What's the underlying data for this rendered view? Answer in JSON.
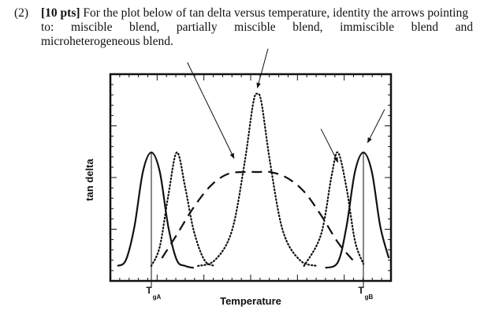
{
  "question": {
    "number": "(2)",
    "points": "[10 pts]",
    "text_line1": "For the plot below of tan delta versus temperature, identity the arrows pointing",
    "text_line2": "to:  miscible  blend,  partially  miscible  blend,  immiscible  blend  and",
    "text_line3": "microheterogeneous blend."
  },
  "chart_data": {
    "type": "line",
    "title": "",
    "xlabel": "Temperature",
    "ylabel": "tan delta",
    "x_ticks": [
      {
        "label": "T",
        "sub": "gA",
        "x": 0.0
      },
      {
        "label": "T",
        "sub": "gB",
        "x": 1.0
      }
    ],
    "xlim": [
      -0.16,
      1.12
    ],
    "ylim": [
      0,
      1
    ],
    "grid": false,
    "legend": "none",
    "series": [
      {
        "style": "solid",
        "x": [
          -0.16,
          -0.12,
          -0.08,
          -0.04,
          0.0,
          0.04,
          0.08,
          0.12,
          0.16,
          0.2
        ],
        "y": [
          0.02,
          0.05,
          0.22,
          0.5,
          0.6,
          0.5,
          0.22,
          0.05,
          0.02,
          0.01
        ]
      },
      {
        "style": "dotted",
        "x": [
          0.0,
          0.04,
          0.08,
          0.12,
          0.16,
          0.2,
          0.25,
          0.3
        ],
        "y": [
          0.02,
          0.12,
          0.38,
          0.6,
          0.42,
          0.2,
          0.05,
          0.02
        ]
      },
      {
        "style": "dashed",
        "x": [
          0.05,
          0.12,
          0.2,
          0.28,
          0.36,
          0.44,
          0.5,
          0.56,
          0.64,
          0.72,
          0.8,
          0.88,
          0.95
        ],
        "y": [
          0.06,
          0.18,
          0.32,
          0.43,
          0.49,
          0.5,
          0.5,
          0.5,
          0.47,
          0.4,
          0.28,
          0.14,
          0.05
        ]
      },
      {
        "style": "dotted",
        "x": [
          0.22,
          0.3,
          0.38,
          0.44,
          0.48,
          0.5,
          0.52,
          0.56,
          0.62,
          0.7,
          0.78
        ],
        "y": [
          0.02,
          0.05,
          0.2,
          0.55,
          0.85,
          0.9,
          0.85,
          0.55,
          0.2,
          0.05,
          0.02
        ]
      },
      {
        "style": "dotted",
        "x": [
          0.72,
          0.8,
          0.85,
          0.88,
          0.92,
          0.96,
          1.0
        ],
        "y": [
          0.02,
          0.18,
          0.48,
          0.6,
          0.42,
          0.15,
          0.03
        ]
      },
      {
        "style": "solid",
        "x": [
          0.82,
          0.88,
          0.92,
          0.96,
          1.0,
          1.04,
          1.08,
          1.12
        ],
        "y": [
          0.01,
          0.04,
          0.22,
          0.5,
          0.6,
          0.5,
          0.22,
          0.06
        ]
      }
    ],
    "arrows": [
      {
        "from": [
          0.17,
          1.06
        ],
        "to": [
          0.39,
          0.57
        ]
      },
      {
        "from": [
          0.55,
          1.13
        ],
        "to": [
          0.5,
          0.93
        ]
      },
      {
        "from": [
          0.8,
          0.72
        ],
        "to": [
          0.88,
          0.55
        ]
      },
      {
        "from": [
          1.1,
          0.82
        ],
        "to": [
          1.02,
          0.65
        ]
      }
    ]
  }
}
